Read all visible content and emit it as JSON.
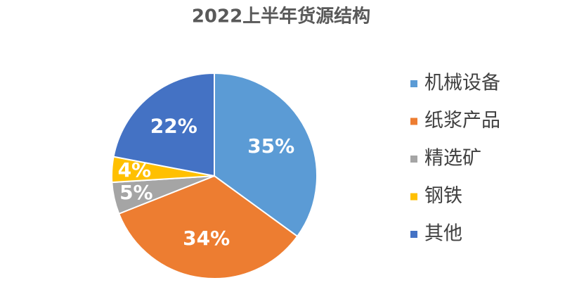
{
  "chart_data": {
    "type": "pie",
    "title": "2022上半年货源结构",
    "categories": [
      "机械设备",
      "纸浆产品",
      "精选矿",
      "钢铁",
      "其他"
    ],
    "values": [
      35,
      34,
      5,
      4,
      22
    ],
    "value_labels": [
      "35%",
      "34%",
      "5%",
      "4%",
      "22%"
    ],
    "colors": [
      "#5b9bd5",
      "#ed7d31",
      "#a5a5a5",
      "#ffc000",
      "#4472c4"
    ],
    "legend": "right"
  }
}
